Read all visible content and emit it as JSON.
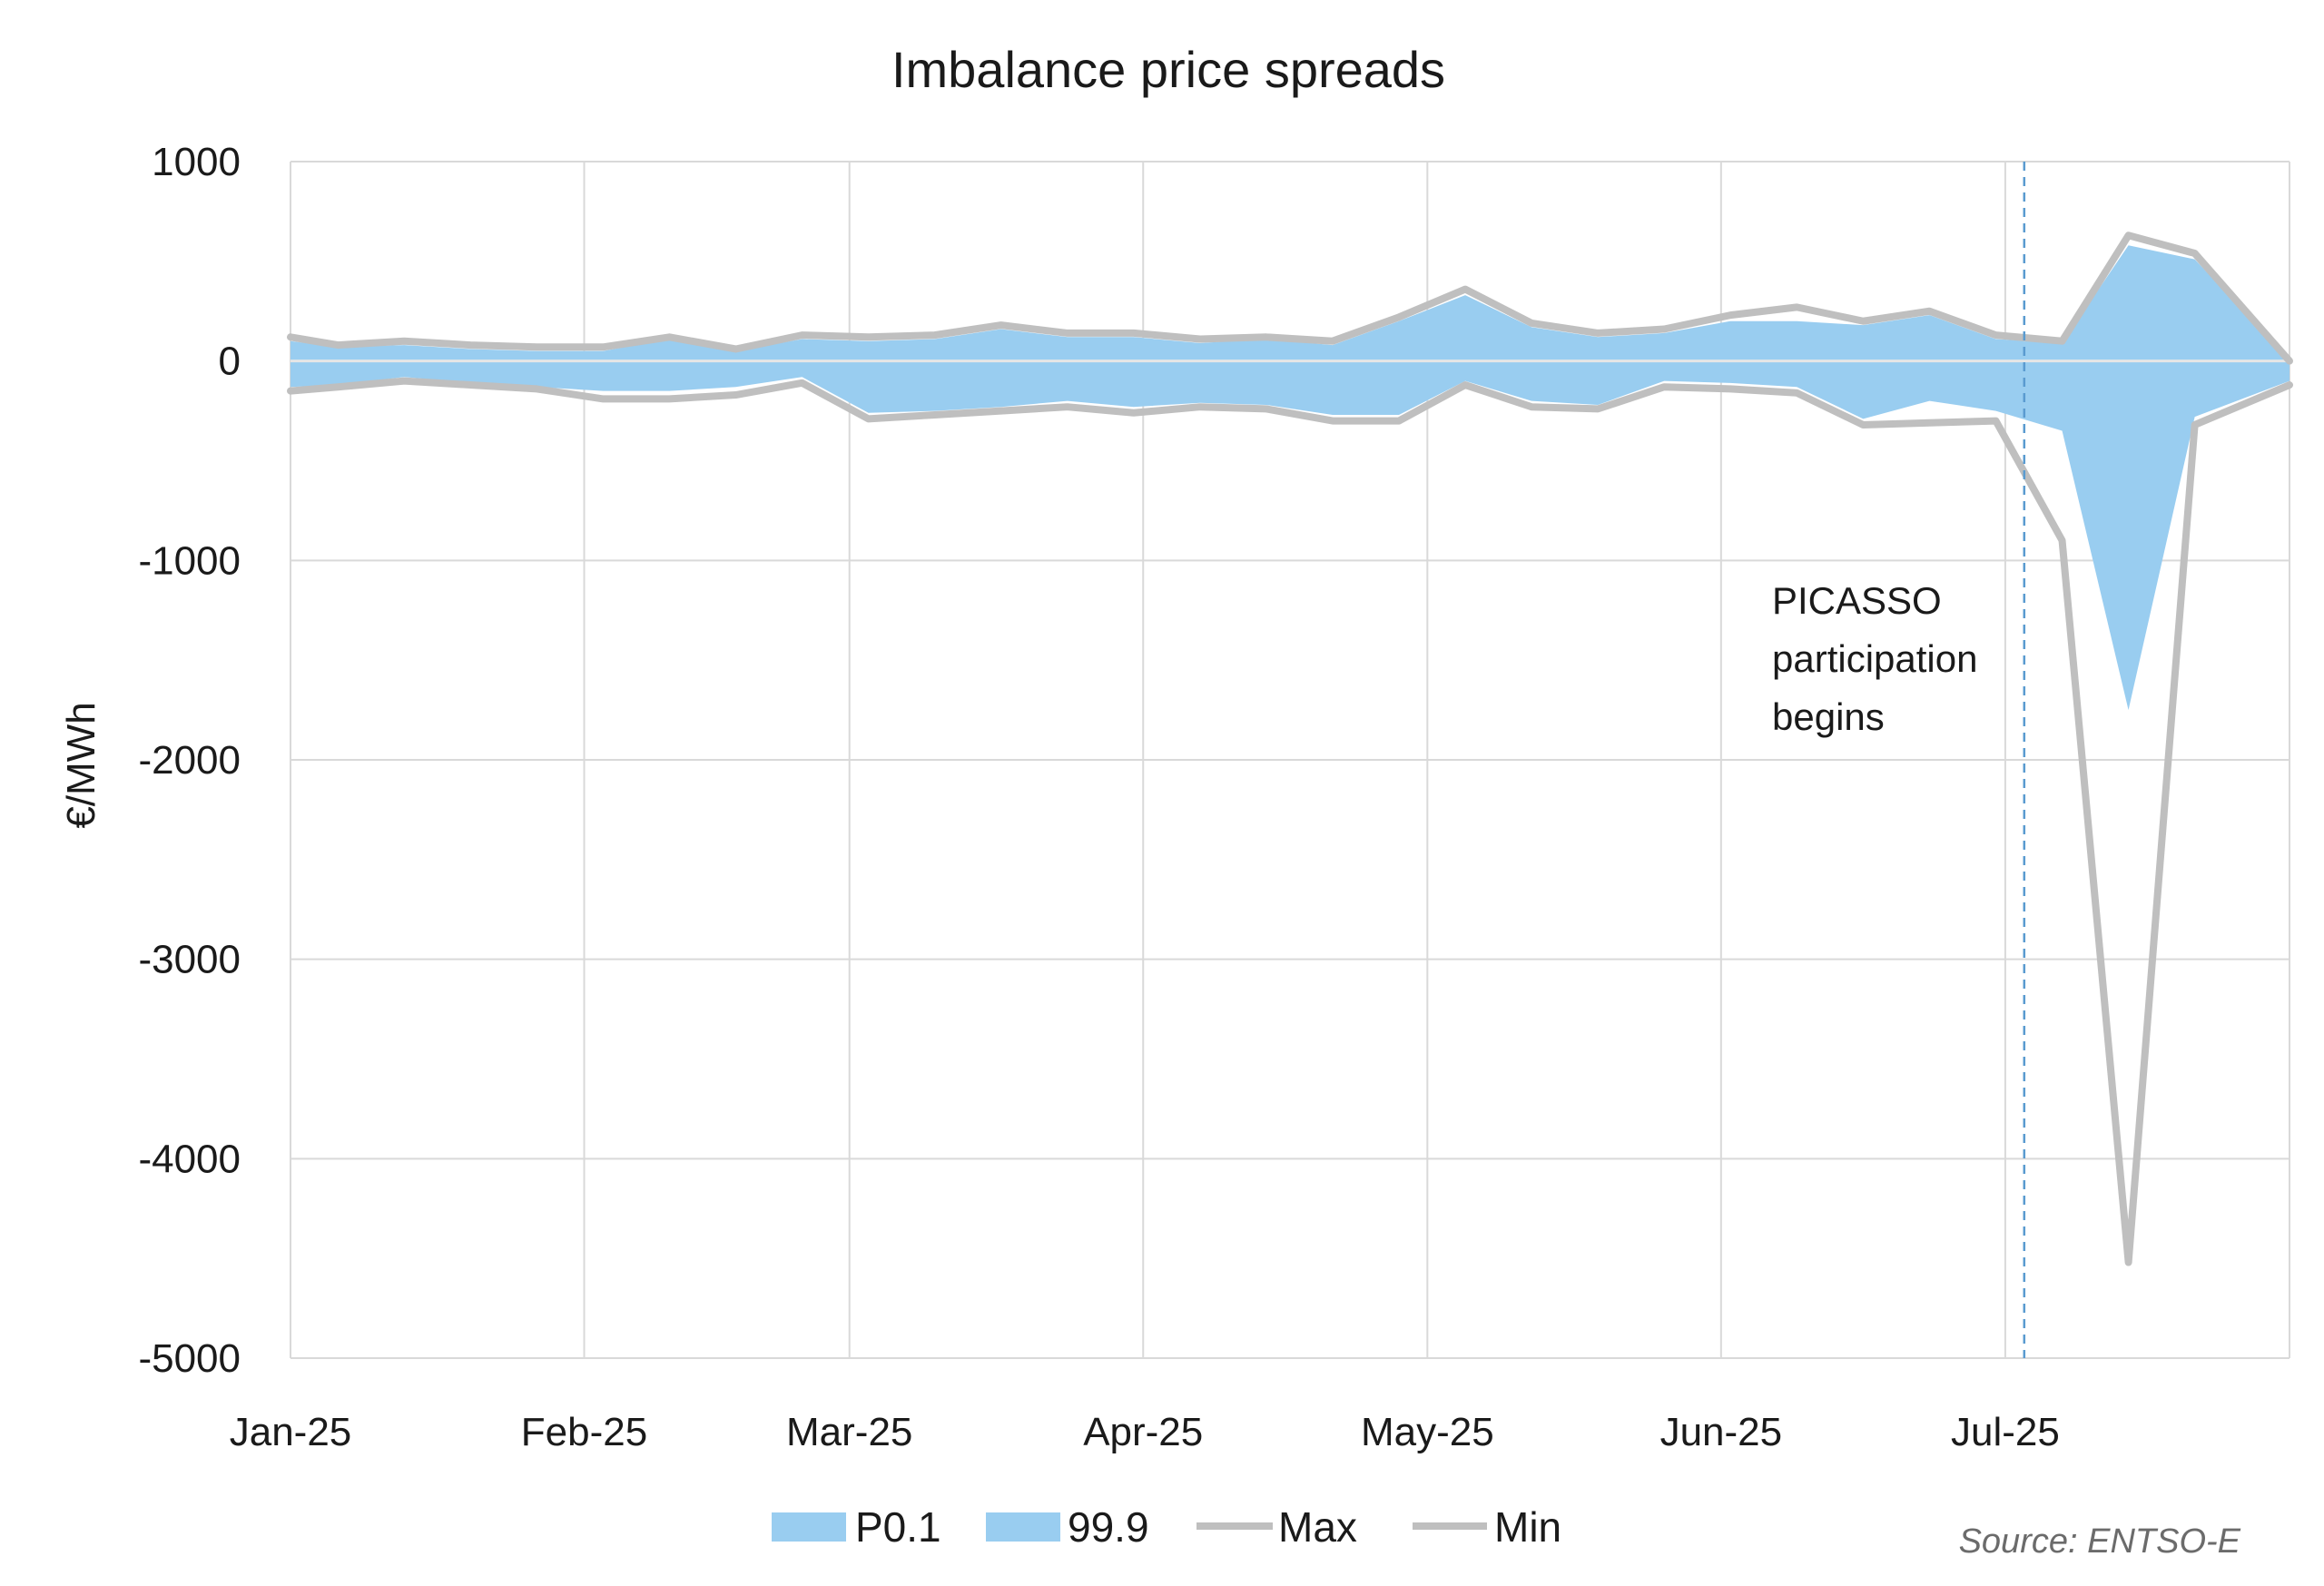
{
  "chart_data": {
    "type": "area",
    "title": "Imbalance price spreads",
    "ylabel": "€/MWh",
    "xlabel": "",
    "ylim": [
      -5000,
      1000
    ],
    "yticks": [
      1000,
      0,
      -1000,
      -2000,
      -3000,
      -4000,
      -5000
    ],
    "xlim": [
      "2025-01-01",
      "2025-07-31"
    ],
    "xticks": [
      {
        "date": "2025-01-01",
        "label": "Jan-25"
      },
      {
        "date": "2025-02-01",
        "label": "Feb-25"
      },
      {
        "date": "2025-03-01",
        "label": "Mar-25"
      },
      {
        "date": "2025-04-01",
        "label": "Apr-25"
      },
      {
        "date": "2025-05-01",
        "label": "May-25"
      },
      {
        "date": "2025-06-01",
        "label": "Jun-25"
      },
      {
        "date": "2025-07-01",
        "label": "Jul-25"
      }
    ],
    "grid": true,
    "legend_position": "bottom",
    "x": [
      "2025-01-01",
      "2025-01-06",
      "2025-01-13",
      "2025-01-20",
      "2025-01-27",
      "2025-02-03",
      "2025-02-10",
      "2025-02-17",
      "2025-02-24",
      "2025-03-03",
      "2025-03-10",
      "2025-03-17",
      "2025-03-24",
      "2025-03-31",
      "2025-04-07",
      "2025-04-14",
      "2025-04-21",
      "2025-04-28",
      "2025-05-05",
      "2025-05-12",
      "2025-05-19",
      "2025-05-26",
      "2025-06-02",
      "2025-06-09",
      "2025-06-16",
      "2025-06-23",
      "2025-06-30",
      "2025-07-07",
      "2025-07-14",
      "2025-07-21",
      "2025-07-31"
    ],
    "series": [
      {
        "name": "P0.1",
        "values": [
          -130,
          -120,
          -80,
          -110,
          -130,
          -150,
          -150,
          -130,
          -80,
          -260,
          -250,
          -230,
          -200,
          -230,
          -210,
          -220,
          -270,
          -270,
          -100,
          -200,
          -220,
          -100,
          -110,
          -130,
          -290,
          -200,
          -250,
          -350,
          -1750,
          -280,
          -100
        ]
      },
      {
        "name": "99.9",
        "values": [
          100,
          70,
          80,
          60,
          50,
          50,
          110,
          50,
          110,
          100,
          110,
          160,
          120,
          120,
          90,
          110,
          80,
          200,
          330,
          170,
          120,
          140,
          200,
          200,
          180,
          230,
          110,
          90,
          580,
          510,
          0
        ]
      },
      {
        "name": "Max",
        "values": [
          120,
          80,
          100,
          80,
          70,
          70,
          120,
          60,
          130,
          120,
          130,
          180,
          140,
          140,
          110,
          120,
          100,
          220,
          360,
          190,
          140,
          160,
          230,
          270,
          200,
          250,
          130,
          100,
          630,
          540,
          0
        ]
      },
      {
        "name": "Min",
        "values": [
          -150,
          -130,
          -100,
          -120,
          -140,
          -190,
          -190,
          -170,
          -110,
          -290,
          -270,
          -250,
          -230,
          -260,
          -230,
          -240,
          -300,
          -300,
          -120,
          -230,
          -240,
          -130,
          -140,
          -160,
          -320,
          -310,
          -300,
          -900,
          -4520,
          -320,
          -120
        ]
      }
    ],
    "vline": {
      "date": "2025-07-03"
    },
    "annotation": {
      "lines": [
        "PICASSO",
        "participation",
        "begins"
      ]
    },
    "source": "Source: ENTSO-E",
    "colors": {
      "band": "#99cdf0",
      "line": "#bfbfbf",
      "vline": "#5a9bd0",
      "zero_axis": "#e6e6e6"
    }
  }
}
